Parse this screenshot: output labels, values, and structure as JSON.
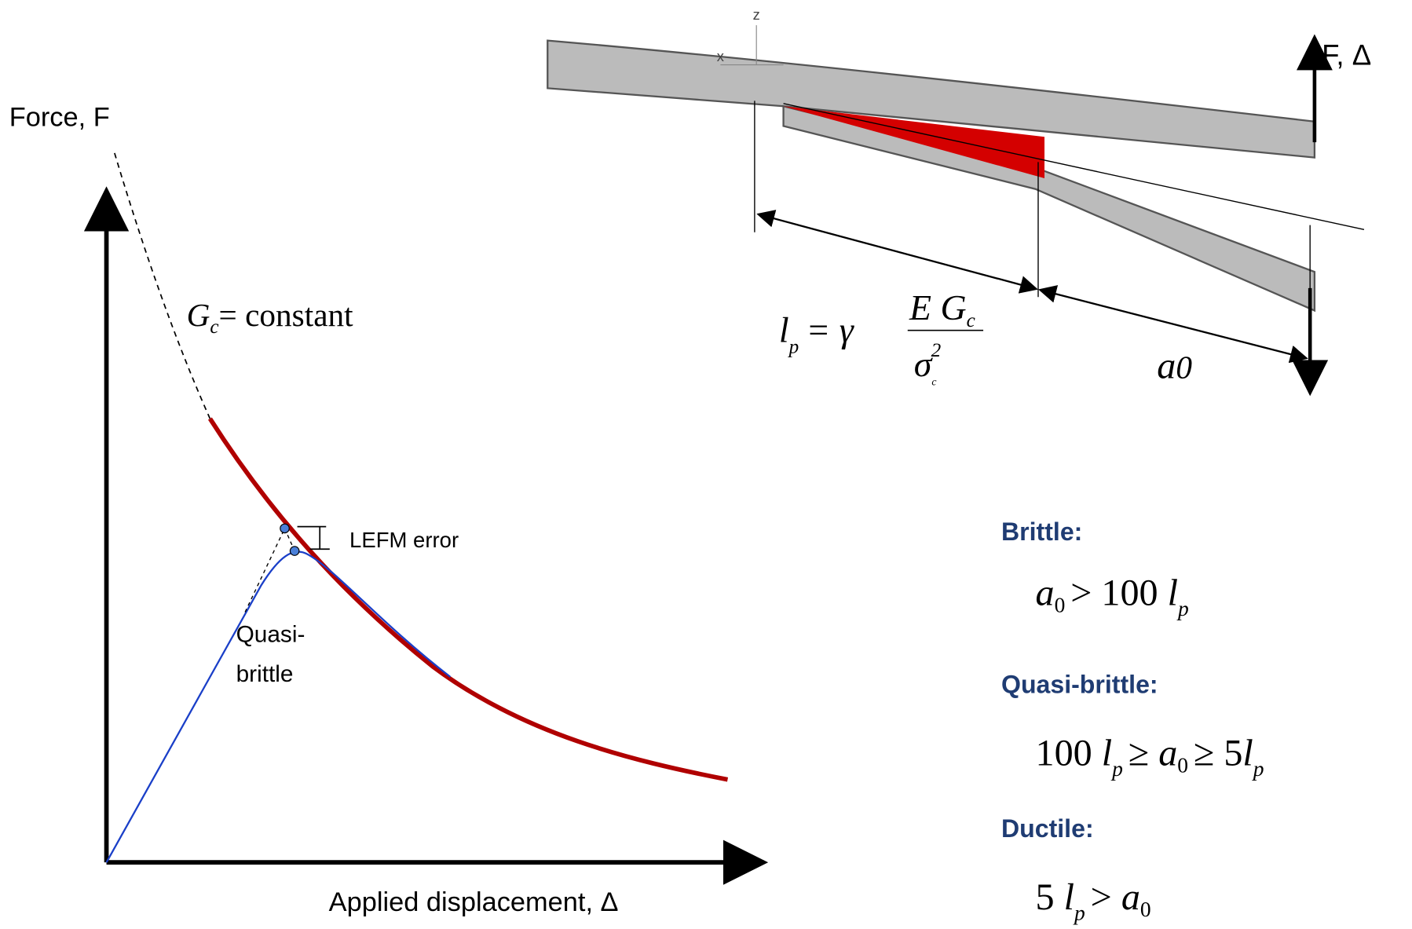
{
  "plot": {
    "y_axis_label": "Force, F",
    "x_axis_label": "Applied displacement, Δ",
    "curve_label": [
      "G",
      "c",
      "= constant"
    ],
    "annotation": "LEFM error",
    "region_label": [
      "Quasi-",
      "brittle"
    ]
  },
  "beam": {
    "axis_z": "z",
    "axis_x": "x",
    "load_label": "F, Δ",
    "process_zone_formula": [
      "l",
      "p",
      "= γ",
      "E G",
      "c",
      "σ",
      "c",
      "2"
    ],
    "crack_length": [
      "a",
      "0"
    ]
  },
  "criteria": [
    {
      "name": "Brittle:",
      "formula": [
        "a",
        "0",
        "> 100 ",
        "l",
        "p"
      ]
    },
    {
      "name": "Quasi-brittle:",
      "formula": [
        "100 ",
        "l",
        "p",
        "≥ ",
        "a",
        "0",
        "≥ 5",
        "l",
        "p"
      ]
    },
    {
      "name": "Ductile:",
      "formula": [
        "5 ",
        "l",
        "p",
        "> ",
        "a",
        "0"
      ]
    }
  ]
}
